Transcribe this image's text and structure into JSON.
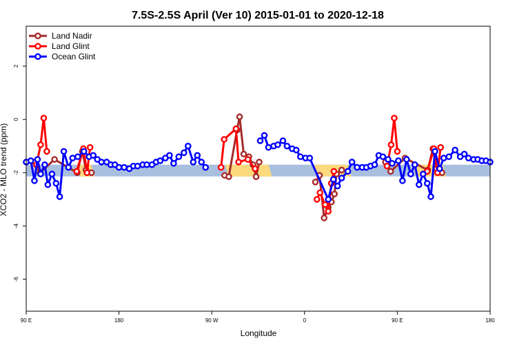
{
  "chart_data": {
    "type": "line",
    "title": "7.5S-2.5S April (Ver 10)   2015-01-01 to 2020-12-18",
    "xlabel": "Longitude",
    "ylabel": "XCO2 - MLO trend (ppm)",
    "xlim": [
      90,
      540
    ],
    "ylim": [
      -7.2,
      3.5
    ],
    "x_ticks": [
      {
        "value": 90,
        "label": "90 E"
      },
      {
        "value": 180,
        "label": "180"
      },
      {
        "value": 270,
        "label": "90 W"
      },
      {
        "value": 360,
        "label": "0"
      },
      {
        "value": 450,
        "label": "90 E"
      },
      {
        "value": 540,
        "label": "180"
      }
    ],
    "y_ticks": [
      -6,
      -4,
      -2,
      0,
      2
    ],
    "legend_position": "top-left",
    "band": {
      "y_center": -1.92,
      "thickness": 0.22,
      "color": "#a8bfdf",
      "highlight_color": "#fcd97d"
    },
    "highlight_ranges": [
      [
        139,
        153
      ],
      [
        283,
        325
      ],
      [
        368,
        402
      ],
      [
        465,
        494
      ]
    ],
    "series": [
      {
        "name": "Land Nadir",
        "color": "#a52a2a",
        "points": [
          [
            98.5,
            -1.6
          ],
          [
            103.5,
            -2.0
          ],
          [
            117.5,
            -1.5
          ],
          [
            139.5,
            -2.0
          ],
          [
            144.5,
            -1.2
          ],
          [
            148,
            -1.9
          ],
          [
            153.3,
            -2.0
          ],
          [
            282.5,
            -2.1
          ],
          [
            286.5,
            -2.15
          ],
          [
            294.5,
            -0.4
          ],
          [
            297,
            0.1
          ],
          [
            301,
            -1.3
          ],
          [
            306,
            -1.4
          ],
          [
            310,
            -1.7
          ],
          [
            313,
            -2.15
          ],
          [
            316,
            -1.6
          ],
          [
            370.5,
            -2.35
          ],
          [
            374.5,
            -2.1
          ],
          [
            379,
            -3.7
          ],
          [
            383,
            -3.3
          ],
          [
            386,
            -3.1
          ],
          [
            389,
            -2.8
          ],
          [
            391,
            -2.05
          ],
          [
            396,
            -1.9
          ],
          [
            438.5,
            -1.6
          ],
          [
            443.5,
            -1.95
          ],
          [
            457.5,
            -1.45
          ],
          [
            479.5,
            -1.9
          ],
          [
            484.5,
            -1.1
          ],
          [
            488,
            -1.85
          ],
          [
            493.3,
            -2.0
          ]
        ]
      },
      {
        "name": "Land Glint",
        "color": "#ff0000",
        "points": [
          [
            100,
            -1.7
          ],
          [
            104,
            -0.95
          ],
          [
            107,
            0.05
          ],
          [
            110,
            -1.2
          ],
          [
            139,
            -1.95
          ],
          [
            145.5,
            -1.1
          ],
          [
            149,
            -2.0
          ],
          [
            152,
            -1.05
          ],
          [
            279,
            -1.8
          ],
          [
            282,
            -0.75
          ],
          [
            293.5,
            -0.35
          ],
          [
            296,
            -1.6
          ],
          [
            305,
            -1.5
          ],
          [
            312,
            -1.85
          ],
          [
            372,
            -3.0
          ],
          [
            375,
            -2.75
          ],
          [
            380,
            -3.2
          ],
          [
            383,
            -3.45
          ],
          [
            386,
            -2.4
          ],
          [
            388.5,
            -1.95
          ],
          [
            440,
            -1.75
          ],
          [
            444,
            -0.95
          ],
          [
            447,
            0.05
          ],
          [
            450,
            -1.2
          ],
          [
            479,
            -1.95
          ],
          [
            485.5,
            -1.1
          ],
          [
            489,
            -2.0
          ],
          [
            492,
            -1.05
          ]
        ]
      },
      {
        "name": "Ocean Glint",
        "color": "#0000ff",
        "points": [
          [
            90,
            -1.6
          ],
          [
            94.5,
            -1.55
          ],
          [
            98,
            -2.3
          ],
          [
            101,
            -1.5
          ],
          [
            104,
            -2.05
          ],
          [
            108,
            -1.7
          ],
          [
            111,
            -2.45
          ],
          [
            115,
            -2.05
          ],
          [
            119,
            -2.4
          ],
          [
            122.5,
            -2.9
          ],
          [
            126.5,
            -1.2
          ],
          [
            131,
            -1.8
          ],
          [
            135,
            -1.45
          ],
          [
            140,
            -1.4
          ],
          [
            146,
            -1.2
          ],
          [
            151,
            -1.4
          ],
          [
            155,
            -1.35
          ],
          [
            159,
            -1.5
          ],
          [
            163,
            -1.6
          ],
          [
            168,
            -1.6
          ],
          [
            172,
            -1.7
          ],
          [
            176,
            -1.7
          ],
          [
            180,
            -1.8
          ],
          [
            185,
            -1.8
          ],
          [
            190,
            -1.85
          ],
          [
            194,
            -1.75
          ],
          [
            198,
            -1.75
          ],
          [
            203,
            -1.7
          ],
          [
            207,
            -1.7
          ],
          [
            212,
            -1.7
          ],
          [
            216,
            -1.6
          ],
          [
            220,
            -1.55
          ],
          [
            225,
            -1.45
          ],
          [
            229,
            -1.35
          ],
          [
            233,
            -1.65
          ],
          [
            238,
            -1.4
          ],
          [
            243,
            -1.25
          ],
          [
            247,
            -1.0
          ],
          [
            252,
            -1.6
          ],
          [
            256,
            -1.35
          ],
          [
            260,
            -1.6
          ],
          [
            264,
            -1.8
          ],
          [
            317,
            -0.8
          ],
          [
            321,
            -0.6
          ],
          [
            325,
            -1.05
          ],
          [
            330,
            -1.0
          ],
          [
            334,
            -0.95
          ],
          [
            339,
            -0.8
          ],
          [
            343,
            -1.0
          ],
          [
            348,
            -1.1
          ],
          [
            352,
            -1.15
          ],
          [
            356,
            -1.4
          ],
          [
            361,
            -1.45
          ],
          [
            365,
            -1.45
          ],
          [
            383,
            -3.0
          ],
          [
            388,
            -2.25
          ],
          [
            392,
            -2.5
          ],
          [
            396,
            -2.2
          ],
          [
            402,
            -1.95
          ],
          [
            406,
            -1.6
          ],
          [
            411,
            -1.8
          ],
          [
            416,
            -1.8
          ],
          [
            420,
            -1.8
          ],
          [
            424,
            -1.75
          ],
          [
            428,
            -1.7
          ],
          [
            432,
            -1.35
          ],
          [
            436,
            -1.4
          ],
          [
            441,
            -1.5
          ],
          [
            445,
            -1.65
          ],
          [
            451,
            -1.55
          ],
          [
            455,
            -2.3
          ],
          [
            459,
            -1.5
          ],
          [
            463,
            -2.05
          ],
          [
            467,
            -1.7
          ],
          [
            471,
            -2.45
          ],
          [
            475,
            -2.05
          ],
          [
            479,
            -2.4
          ],
          [
            482.5,
            -2.9
          ],
          [
            486.5,
            -1.2
          ],
          [
            491,
            -1.85
          ],
          [
            495,
            -1.45
          ],
          [
            500,
            -1.4
          ],
          [
            506,
            -1.15
          ],
          [
            511,
            -1.4
          ],
          [
            515,
            -1.3
          ],
          [
            519,
            -1.45
          ],
          [
            524,
            -1.5
          ],
          [
            528,
            -1.5
          ],
          [
            532,
            -1.55
          ],
          [
            536,
            -1.55
          ],
          [
            540,
            -1.6
          ]
        ]
      }
    ]
  }
}
